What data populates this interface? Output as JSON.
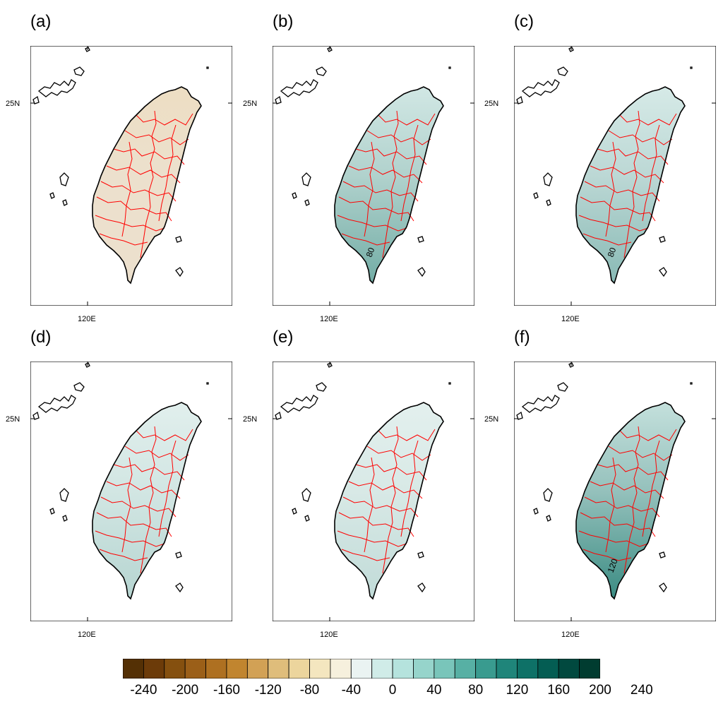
{
  "panels": [
    {
      "id": "a",
      "label": "(a)",
      "intensity": 0.0,
      "contour": ""
    },
    {
      "id": "b",
      "label": "(b)",
      "intensity": 0.55,
      "contour": "80"
    },
    {
      "id": "c",
      "label": "(c)",
      "intensity": 0.45,
      "contour": "80"
    },
    {
      "id": "d",
      "label": "(d)",
      "intensity": 0.25,
      "contour": ""
    },
    {
      "id": "e",
      "label": "(e)",
      "intensity": 0.2,
      "contour": ""
    },
    {
      "id": "f",
      "label": "(f)",
      "intensity": 0.8,
      "contour": "120"
    }
  ],
  "axes": {
    "lat_label": "25N",
    "lon_label": "120E"
  },
  "colorbar": {
    "labels": [
      "-240",
      "-200",
      "-160",
      "-120",
      "-80",
      "-40",
      "0",
      "40",
      "80",
      "120",
      "160",
      "200",
      "240"
    ],
    "colors": [
      "#543005",
      "#6c3b09",
      "#85500f",
      "#9b5f18",
      "#ae7021",
      "#c1852f",
      "#d2a155",
      "#dfbd7b",
      "#ecd59d",
      "#f4e6bf",
      "#f6f0dd",
      "#eaf3f2",
      "#d0ece8",
      "#b5e3dd",
      "#96d4cb",
      "#79c5ba",
      "#57b0a4",
      "#399b8f",
      "#1f857a",
      "#0e7167",
      "#045d53",
      "#01493f",
      "#003c30"
    ]
  },
  "colors": {
    "coast": "#000000",
    "county": "#ff0000",
    "brown": "#e8cfa0",
    "teal": "#0e7167"
  }
}
